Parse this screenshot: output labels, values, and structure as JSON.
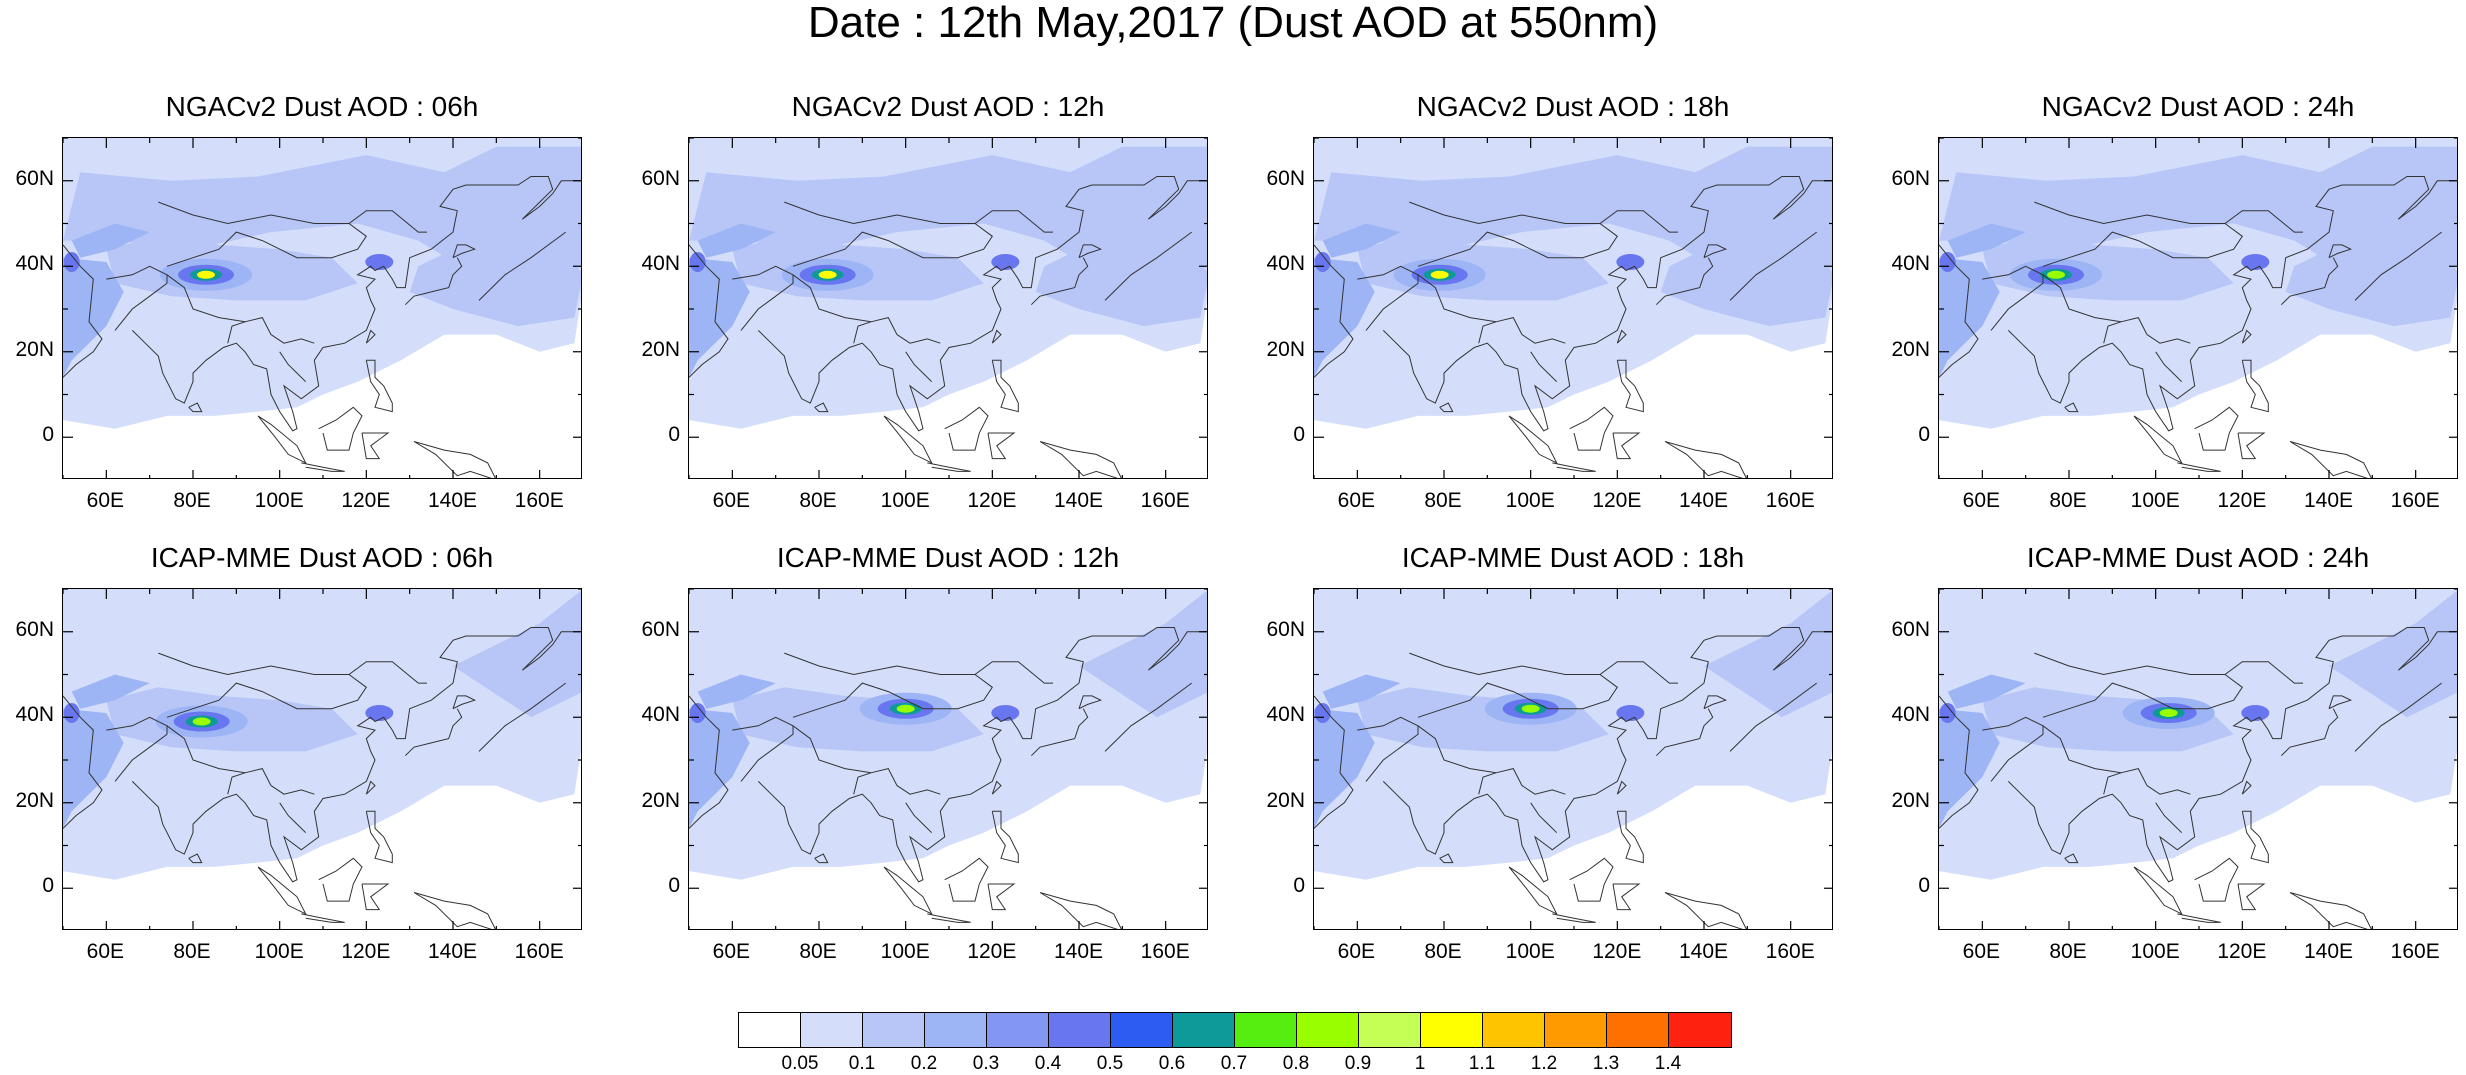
{
  "title": "Date : 12th May,2017 (Dust AOD at 550nm)",
  "panels": [
    {
      "title": "NGACv2 Dust AOD : 06h",
      "source": "NGACv2",
      "hour": "06h",
      "hotspot_lon": 83,
      "hotspot_lat": 38,
      "peak": "1.0"
    },
    {
      "title": "NGACv2 Dust AOD : 12h",
      "source": "NGACv2",
      "hour": "12h",
      "hotspot_lon": 82,
      "hotspot_lat": 38,
      "peak": "0.9"
    },
    {
      "title": "NGACv2 Dust AOD : 18h",
      "source": "NGACv2",
      "hour": "18h",
      "hotspot_lon": 79,
      "hotspot_lat": 38,
      "peak": "0.9"
    },
    {
      "title": "NGACv2 Dust AOD : 24h",
      "source": "NGACv2",
      "hour": "24h",
      "hotspot_lon": 77,
      "hotspot_lat": 38,
      "peak": "0.7"
    },
    {
      "title": "ICAP-MME Dust AOD : 06h",
      "source": "ICAP-MME",
      "hour": "06h",
      "hotspot_lon": 82,
      "hotspot_lat": 39,
      "peak": "0.8"
    },
    {
      "title": "ICAP-MME Dust AOD : 12h",
      "source": "ICAP-MME",
      "hour": "12h",
      "hotspot_lon": 100,
      "hotspot_lat": 42,
      "peak": "0.8"
    },
    {
      "title": "ICAP-MME Dust AOD : 18h",
      "source": "ICAP-MME",
      "hour": "18h",
      "hotspot_lon": 100,
      "hotspot_lat": 42,
      "peak": "0.8"
    },
    {
      "title": "ICAP-MME Dust AOD : 24h",
      "source": "ICAP-MME",
      "hour": "24h",
      "hotspot_lon": 103,
      "hotspot_lat": 41,
      "peak": "0.7"
    }
  ],
  "axes": {
    "lon_range": [
      50,
      170
    ],
    "lat_range": [
      -10,
      70
    ],
    "x_ticks": [
      "60E",
      "80E",
      "100E",
      "120E",
      "140E",
      "160E"
    ],
    "y_ticks": [
      "60N",
      "40N",
      "20N",
      "0"
    ]
  },
  "colorbar": {
    "labels": [
      "0.05",
      "0.1",
      "0.2",
      "0.3",
      "0.4",
      "0.5",
      "0.6",
      "0.7",
      "0.8",
      "0.9",
      "1",
      "1.1",
      "1.2",
      "1.3",
      "1.4"
    ],
    "colors": [
      "#ffffff",
      "#d4defa",
      "#b7c6f7",
      "#9db4f5",
      "#8296f2",
      "#6877ef",
      "#2c5cf2",
      "#0f9a9a",
      "#55ee11",
      "#99ff00",
      "#c5ff55",
      "#ffff00",
      "#ffc400",
      "#ff9a00",
      "#ff7000",
      "#ff2211"
    ]
  }
}
